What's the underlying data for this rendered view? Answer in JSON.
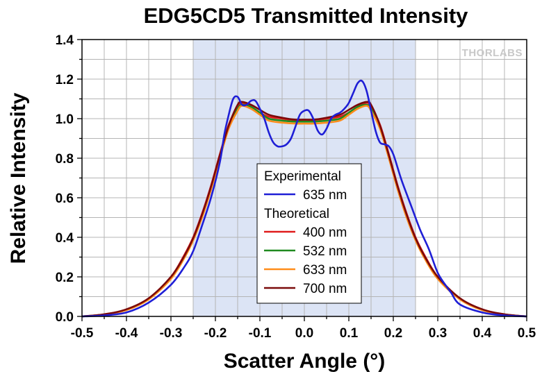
{
  "chart_data": {
    "type": "line",
    "title": "EDG5CD5 Transmitted Intensity",
    "xlabel": "Scatter Angle (°)",
    "ylabel": "Relative Intensity",
    "xlim": [
      -0.5,
      0.5
    ],
    "ylim": [
      0.0,
      1.4
    ],
    "xticks": [
      "-0.5",
      "-0.4",
      "-0.3",
      "-0.2",
      "-0.1",
      "0.0",
      "0.1",
      "0.2",
      "0.3",
      "0.4",
      "0.5"
    ],
    "yticks": [
      "0.0",
      "0.2",
      "0.4",
      "0.6",
      "0.8",
      "1.0",
      "1.2",
      "1.4"
    ],
    "grid": true,
    "highlight_region": {
      "x_start": -0.25,
      "x_end": 0.25,
      "color": "#dce4f5"
    },
    "watermark": "THORLABS",
    "legend": {
      "position": "center",
      "groups": [
        {
          "title": "Experimental",
          "entries": [
            {
              "name": "635 nm",
              "color": "#1f1fd6"
            }
          ]
        },
        {
          "title": "Theoretical",
          "entries": [
            {
              "name": "400 nm",
              "color": "#e01b1b"
            },
            {
              "name": "532 nm",
              "color": "#1f8a1f"
            },
            {
              "name": "633 nm",
              "color": "#ff8c1a"
            },
            {
              "name": "700 nm",
              "color": "#7a0a0a"
            }
          ]
        }
      ]
    },
    "series": [
      {
        "name": "635 nm",
        "group": "Experimental",
        "color": "#1f1fd6",
        "x": [
          -0.5,
          -0.45,
          -0.4,
          -0.35,
          -0.3,
          -0.27,
          -0.25,
          -0.23,
          -0.21,
          -0.19,
          -0.18,
          -0.17,
          -0.16,
          -0.15,
          -0.14,
          -0.13,
          -0.12,
          -0.11,
          -0.1,
          -0.09,
          -0.08,
          -0.07,
          -0.06,
          -0.05,
          -0.04,
          -0.03,
          -0.02,
          -0.01,
          0.0,
          0.01,
          0.02,
          0.03,
          0.04,
          0.05,
          0.06,
          0.07,
          0.08,
          0.09,
          0.1,
          0.11,
          0.12,
          0.13,
          0.14,
          0.15,
          0.16,
          0.17,
          0.18,
          0.19,
          0.2,
          0.21,
          0.22,
          0.24,
          0.26,
          0.28,
          0.3,
          0.32,
          0.33,
          0.35,
          0.4,
          0.45,
          0.5
        ],
        "y": [
          0.0,
          0.005,
          0.02,
          0.07,
          0.16,
          0.25,
          0.33,
          0.46,
          0.6,
          0.78,
          0.92,
          1.02,
          1.1,
          1.11,
          1.07,
          1.07,
          1.09,
          1.09,
          1.05,
          1.0,
          0.93,
          0.88,
          0.86,
          0.86,
          0.87,
          0.9,
          0.96,
          1.02,
          1.04,
          1.04,
          1.0,
          0.94,
          0.92,
          0.95,
          1.0,
          1.02,
          1.03,
          1.05,
          1.08,
          1.13,
          1.18,
          1.19,
          1.14,
          1.04,
          0.94,
          0.88,
          0.87,
          0.86,
          0.82,
          0.75,
          0.68,
          0.56,
          0.44,
          0.34,
          0.22,
          0.15,
          0.12,
          0.06,
          0.02,
          0.005,
          0.0
        ]
      },
      {
        "name": "400 nm",
        "group": "Theoretical",
        "color": "#e01b1b",
        "x": [
          -0.5,
          -0.45,
          -0.4,
          -0.35,
          -0.3,
          -0.27,
          -0.25,
          -0.23,
          -0.21,
          -0.19,
          -0.17,
          -0.15,
          -0.14,
          -0.12,
          -0.1,
          -0.08,
          -0.05,
          -0.02,
          0.0,
          0.02,
          0.05,
          0.08,
          0.1,
          0.12,
          0.14,
          0.15,
          0.17,
          0.19,
          0.21,
          0.23,
          0.25,
          0.27,
          0.3,
          0.35,
          0.4,
          0.45,
          0.5
        ],
        "y": [
          0.0,
          0.01,
          0.035,
          0.09,
          0.2,
          0.31,
          0.4,
          0.52,
          0.66,
          0.82,
          0.97,
          1.06,
          1.08,
          1.06,
          1.03,
          1.01,
          1.0,
          0.99,
          0.99,
          0.99,
          1.0,
          1.01,
          1.03,
          1.06,
          1.08,
          1.06,
          0.97,
          0.82,
          0.66,
          0.52,
          0.4,
          0.31,
          0.2,
          0.09,
          0.035,
          0.01,
          0.0
        ]
      },
      {
        "name": "532 nm",
        "group": "Theoretical",
        "color": "#1f8a1f",
        "x": [
          -0.5,
          -0.45,
          -0.4,
          -0.35,
          -0.3,
          -0.27,
          -0.25,
          -0.23,
          -0.21,
          -0.19,
          -0.17,
          -0.15,
          -0.14,
          -0.12,
          -0.1,
          -0.08,
          -0.05,
          -0.02,
          0.0,
          0.02,
          0.05,
          0.08,
          0.1,
          0.12,
          0.14,
          0.15,
          0.17,
          0.19,
          0.21,
          0.23,
          0.25,
          0.27,
          0.3,
          0.35,
          0.4,
          0.45,
          0.5
        ],
        "y": [
          0.0,
          0.01,
          0.033,
          0.088,
          0.195,
          0.3,
          0.39,
          0.51,
          0.65,
          0.81,
          0.96,
          1.05,
          1.07,
          1.06,
          1.03,
          1.0,
          0.99,
          0.985,
          0.985,
          0.985,
          0.99,
          1.0,
          1.03,
          1.06,
          1.07,
          1.05,
          0.96,
          0.81,
          0.65,
          0.51,
          0.39,
          0.3,
          0.195,
          0.088,
          0.033,
          0.01,
          0.0
        ]
      },
      {
        "name": "633 nm",
        "group": "Theoretical",
        "color": "#ff8c1a",
        "x": [
          -0.5,
          -0.45,
          -0.4,
          -0.35,
          -0.3,
          -0.27,
          -0.25,
          -0.23,
          -0.21,
          -0.19,
          -0.17,
          -0.15,
          -0.14,
          -0.12,
          -0.1,
          -0.08,
          -0.05,
          -0.02,
          0.0,
          0.02,
          0.05,
          0.08,
          0.1,
          0.12,
          0.14,
          0.15,
          0.17,
          0.19,
          0.21,
          0.23,
          0.25,
          0.27,
          0.3,
          0.35,
          0.4,
          0.45,
          0.5
        ],
        "y": [
          0.0,
          0.01,
          0.032,
          0.086,
          0.19,
          0.295,
          0.385,
          0.5,
          0.64,
          0.8,
          0.95,
          1.04,
          1.065,
          1.05,
          1.02,
          0.99,
          0.98,
          0.975,
          0.975,
          0.975,
          0.98,
          0.99,
          1.02,
          1.05,
          1.065,
          1.04,
          0.95,
          0.8,
          0.64,
          0.5,
          0.385,
          0.295,
          0.19,
          0.086,
          0.032,
          0.01,
          0.0
        ]
      },
      {
        "name": "700 nm",
        "group": "Theoretical",
        "color": "#7a0a0a",
        "x": [
          -0.5,
          -0.45,
          -0.4,
          -0.35,
          -0.3,
          -0.27,
          -0.25,
          -0.23,
          -0.21,
          -0.19,
          -0.17,
          -0.15,
          -0.14,
          -0.12,
          -0.1,
          -0.08,
          -0.05,
          -0.02,
          0.0,
          0.02,
          0.05,
          0.08,
          0.1,
          0.12,
          0.14,
          0.15,
          0.17,
          0.19,
          0.21,
          0.23,
          0.25,
          0.27,
          0.3,
          0.35,
          0.4,
          0.45,
          0.5
        ],
        "y": [
          0.0,
          0.011,
          0.036,
          0.092,
          0.2,
          0.305,
          0.395,
          0.515,
          0.655,
          0.815,
          0.965,
          1.07,
          1.085,
          1.07,
          1.045,
          1.02,
          1.005,
          0.995,
          0.995,
          0.995,
          1.005,
          1.02,
          1.045,
          1.07,
          1.085,
          1.07,
          0.965,
          0.815,
          0.655,
          0.515,
          0.395,
          0.305,
          0.2,
          0.092,
          0.036,
          0.011,
          0.0
        ]
      }
    ]
  }
}
